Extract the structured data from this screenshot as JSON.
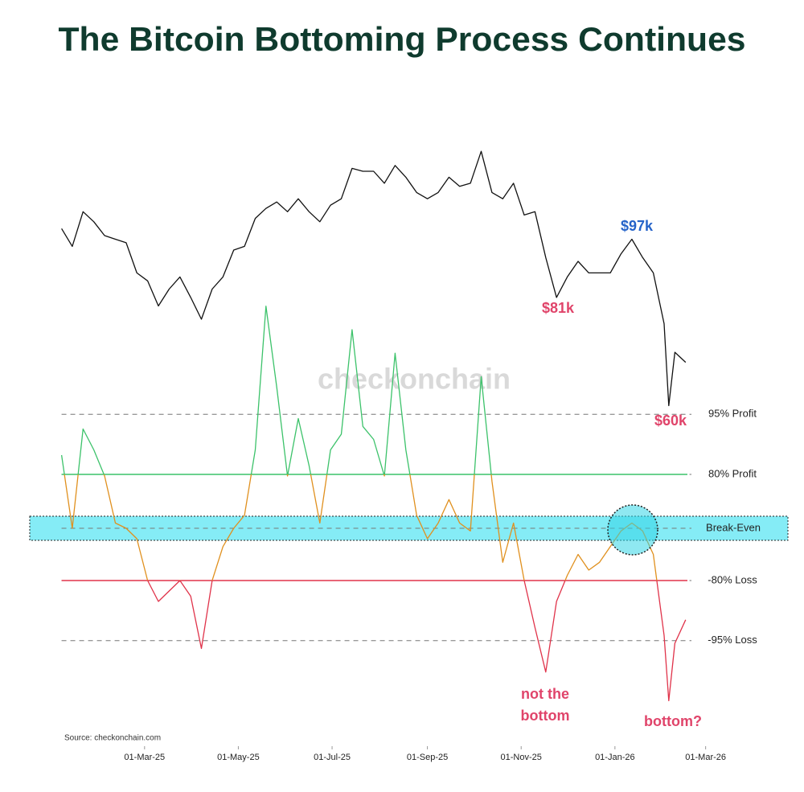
{
  "chart_data": {
    "type": "line",
    "title": "The Bitcoin Bottoming Process Continues",
    "watermark": "checkonchain",
    "source": "Source: checkonchain.com",
    "x": [
      "2025-01-06",
      "2025-01-13",
      "2025-01-20",
      "2025-01-27",
      "2025-02-03",
      "2025-02-10",
      "2025-02-17",
      "2025-02-24",
      "2025-03-03",
      "2025-03-10",
      "2025-03-17",
      "2025-03-24",
      "2025-03-31",
      "2025-04-07",
      "2025-04-14",
      "2025-04-21",
      "2025-04-28",
      "2025-05-05",
      "2025-05-12",
      "2025-05-19",
      "2025-05-26",
      "2025-06-02",
      "2025-06-09",
      "2025-06-16",
      "2025-06-23",
      "2025-06-30",
      "2025-07-07",
      "2025-07-14",
      "2025-07-21",
      "2025-07-28",
      "2025-08-04",
      "2025-08-11",
      "2025-08-18",
      "2025-08-25",
      "2025-09-01",
      "2025-09-08",
      "2025-09-15",
      "2025-09-22",
      "2025-09-29",
      "2025-10-06",
      "2025-10-13",
      "2025-10-20",
      "2025-10-27",
      "2025-11-03",
      "2025-11-10",
      "2025-11-17",
      "2025-11-24",
      "2025-12-01",
      "2025-12-08",
      "2025-12-15",
      "2025-12-22",
      "2025-12-29",
      "2026-01-05",
      "2026-01-12",
      "2026-01-19",
      "2026-01-26",
      "2026-02-02",
      "2026-02-05",
      "2026-02-09",
      "2026-02-16"
    ],
    "series": [
      {
        "name": "Price",
        "color": "#111111",
        "values": [
          100000,
          95000,
          105000,
          102000,
          98000,
          97000,
          96000,
          88000,
          86000,
          80000,
          84000,
          87000,
          82000,
          77000,
          84000,
          87000,
          94000,
          95000,
          103000,
          106000,
          108000,
          105000,
          109000,
          105000,
          102000,
          107000,
          109000,
          119000,
          118000,
          118000,
          114000,
          120000,
          116000,
          111000,
          109000,
          111000,
          116000,
          113000,
          114000,
          125000,
          111000,
          109000,
          114000,
          104000,
          105000,
          92000,
          82000,
          87000,
          91000,
          88000,
          88000,
          88000,
          93000,
          97000,
          92000,
          88000,
          76000,
          60000,
          70000,
          68000
        ]
      },
      {
        "name": "Oscillator",
        "color": "#e0901e",
        "axis": "y2",
        "values": [
          1.4,
          0.0,
          1.9,
          1.5,
          1.0,
          0.1,
          0.0,
          -0.2,
          -1.0,
          -1.4,
          -1.2,
          -1.0,
          -1.3,
          -2.3,
          -1.0,
          -0.35,
          0.0,
          0.25,
          1.5,
          4.25,
          2.7,
          1.0,
          2.1,
          1.2,
          0.1,
          1.5,
          1.8,
          3.8,
          1.95,
          1.7,
          1.0,
          3.35,
          1.5,
          0.25,
          -0.2,
          0.1,
          0.55,
          0.1,
          -0.05,
          2.9,
          0.9,
          -0.65,
          0.1,
          -1.0,
          -1.9,
          -2.75,
          -1.4,
          -0.9,
          -0.5,
          -0.8,
          -0.65,
          -0.35,
          -0.05,
          0.1,
          -0.05,
          -0.5,
          -2.05,
          -3.3,
          -2.2,
          -1.75
        ]
      }
    ],
    "levels": [
      {
        "name": "95% Profit",
        "value": 2.18
      },
      {
        "name": "80% Profit",
        "value": 1.03,
        "color": "#3cc26a"
      },
      {
        "name": "Break-Even",
        "value": 0,
        "band": true
      },
      {
        "name": "-80% Loss",
        "value": -1,
        "color": "#e0334a"
      },
      {
        "name": "-95% Loss",
        "value": -2.15
      }
    ],
    "annotations": [
      {
        "text": "$97k",
        "color": "#2563c9"
      },
      {
        "text": "$81k",
        "color": "#e0446a"
      },
      {
        "text": "$60k",
        "color": "#e0446a"
      },
      {
        "text": [
          "not the",
          "bottom"
        ],
        "color": "#e0446a"
      },
      {
        "text": "bottom?",
        "color": "#e0446a"
      }
    ],
    "xlim": [
      "2025-01-01",
      "2026-03-31"
    ],
    "xticks": [
      {
        "value": "2025-03-01",
        "label": "01-Mar-25"
      },
      {
        "value": "2025-05-01",
        "label": "01-May-25"
      },
      {
        "value": "2025-07-01",
        "label": "01-Jul-25"
      },
      {
        "value": "2025-09-01",
        "label": "01-Sep-25"
      },
      {
        "value": "2025-11-01",
        "label": "01-Nov-25"
      },
      {
        "value": "2026-01-01",
        "label": "01-Jan-26"
      },
      {
        "value": "2026-03-01",
        "label": "01-Mar-26"
      }
    ],
    "ylim": [
      55000,
      135000
    ],
    "log_scale": true,
    "y2lim": [
      -3.7,
      4.5
    ]
  }
}
